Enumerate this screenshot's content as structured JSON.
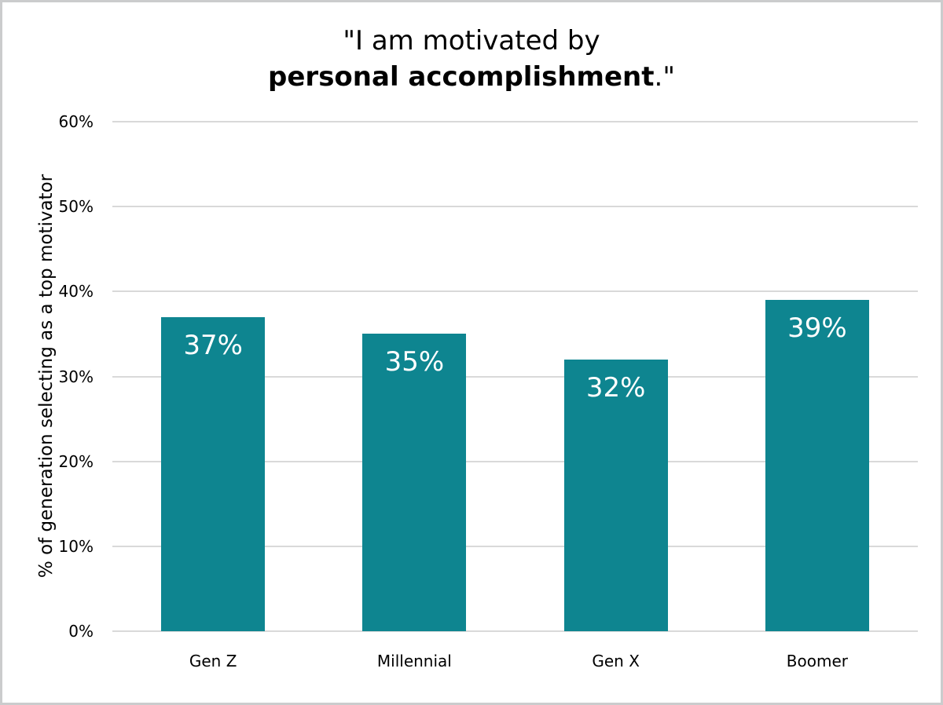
{
  "chart_data": {
    "type": "bar",
    "title_line1": "\"I am motivated by",
    "title_line2_bold": "personal accomplishment",
    "title_line2_rest": ".\"",
    "ylabel": "% of generation selecting as a top motivator",
    "xlabel": "",
    "categories": [
      "Gen Z",
      "Millennial",
      "Gen X",
      "Boomer"
    ],
    "values": [
      37,
      35,
      32,
      39
    ],
    "bar_labels": [
      "37%",
      "35%",
      "32%",
      "39%"
    ],
    "yticks": [
      0,
      10,
      20,
      30,
      40,
      50,
      60
    ],
    "ytick_labels": [
      "0%",
      "10%",
      "20%",
      "30%",
      "40%",
      "50%",
      "60%"
    ],
    "ylim": [
      0,
      60
    ],
    "grid": true,
    "legend": false,
    "colors": {
      "bar": "#0E8590",
      "gridline": "#D9D9D9",
      "value_label": "#FFFFFF",
      "text": "#000000",
      "frame_border": "#CBCCCD"
    }
  }
}
